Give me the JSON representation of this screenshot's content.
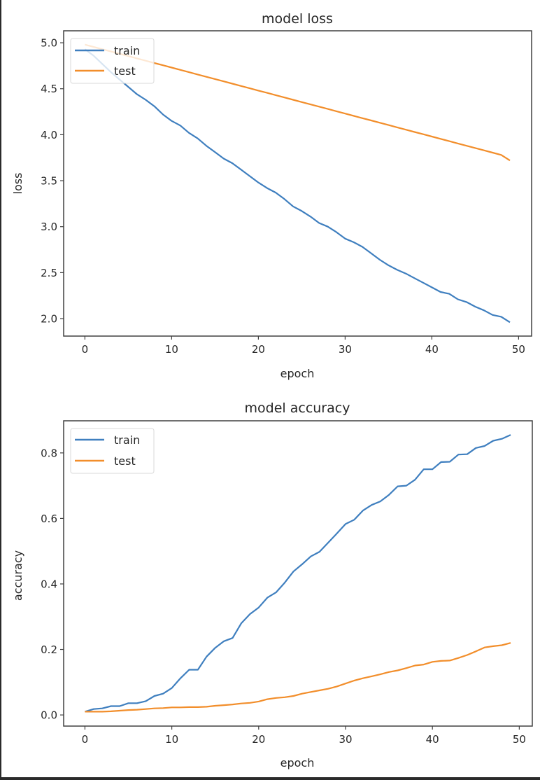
{
  "colors": {
    "train": "#3f7fbf",
    "test": "#f28e2b",
    "axis": "#404040",
    "legend_border": "#dddddd"
  },
  "chart_data": [
    {
      "type": "line",
      "title": "model loss",
      "xlabel": "epoch",
      "ylabel": "loss",
      "xlim": [
        -2.45,
        51.5
      ],
      "ylim": [
        1.81,
        5.13
      ],
      "xticks": [
        0,
        10,
        20,
        30,
        40,
        50
      ],
      "xtick_labels": [
        "0",
        "10",
        "20",
        "30",
        "40",
        "50"
      ],
      "yticks": [
        2.0,
        2.5,
        3.0,
        3.5,
        4.0,
        4.5,
        5.0
      ],
      "ytick_labels": [
        "2.0",
        "2.5",
        "3.0",
        "3.5",
        "4.0",
        "4.5",
        "5.0"
      ],
      "grid": false,
      "legend": {
        "placement": "upper left",
        "entries": [
          "train",
          "test"
        ]
      },
      "x": [
        0,
        1,
        2,
        3,
        4,
        5,
        6,
        7,
        8,
        9,
        10,
        11,
        12,
        13,
        14,
        15,
        16,
        17,
        18,
        19,
        20,
        21,
        22,
        23,
        24,
        25,
        26,
        27,
        28,
        29,
        30,
        31,
        32,
        33,
        34,
        35,
        36,
        37,
        38,
        39,
        40,
        41,
        42,
        43,
        44,
        45,
        46,
        47,
        48,
        49
      ],
      "series": [
        {
          "name": "train",
          "values": [
            4.93,
            4.86,
            4.77,
            4.68,
            4.6,
            4.52,
            4.44,
            4.38,
            4.31,
            4.22,
            4.15,
            4.1,
            4.02,
            3.96,
            3.88,
            3.81,
            3.74,
            3.69,
            3.62,
            3.55,
            3.48,
            3.42,
            3.37,
            3.3,
            3.22,
            3.17,
            3.11,
            3.04,
            3.0,
            2.94,
            2.87,
            2.83,
            2.78,
            2.71,
            2.64,
            2.58,
            2.53,
            2.49,
            2.44,
            2.39,
            2.34,
            2.29,
            2.27,
            2.21,
            2.18,
            2.13,
            2.09,
            2.04,
            2.02,
            1.96
          ]
        },
        {
          "name": "test",
          "values": [
            4.98,
            4.955,
            4.93,
            4.905,
            4.88,
            4.855,
            4.83,
            4.805,
            4.78,
            4.755,
            4.73,
            4.705,
            4.68,
            4.655,
            4.63,
            4.605,
            4.58,
            4.555,
            4.53,
            4.505,
            4.48,
            4.455,
            4.43,
            4.405,
            4.38,
            4.355,
            4.33,
            4.305,
            4.28,
            4.255,
            4.23,
            4.205,
            4.18,
            4.155,
            4.13,
            4.105,
            4.08,
            4.055,
            4.03,
            4.005,
            3.98,
            3.955,
            3.93,
            3.905,
            3.88,
            3.855,
            3.83,
            3.805,
            3.78,
            3.72
          ]
        }
      ]
    },
    {
      "type": "line",
      "title": "model accuracy",
      "xlabel": "epoch",
      "ylabel": "accuracy",
      "xlim": [
        -2.45,
        51.5
      ],
      "ylim": [
        -0.034,
        0.898
      ],
      "xticks": [
        0,
        10,
        20,
        30,
        40,
        50
      ],
      "xtick_labels": [
        "0",
        "10",
        "20",
        "30",
        "40",
        "50"
      ],
      "yticks": [
        0.0,
        0.2,
        0.4,
        0.6,
        0.8
      ],
      "ytick_labels": [
        "0.0",
        "0.2",
        "0.4",
        "0.6",
        "0.8"
      ],
      "grid": false,
      "legend": {
        "placement": "upper left",
        "entries": [
          "train",
          "test"
        ]
      },
      "x": [
        0,
        1,
        2,
        3,
        4,
        5,
        6,
        7,
        8,
        9,
        10,
        11,
        12,
        13,
        14,
        15,
        16,
        17,
        18,
        19,
        20,
        21,
        22,
        23,
        24,
        25,
        26,
        27,
        28,
        29,
        30,
        31,
        32,
        33,
        34,
        35,
        36,
        37,
        38,
        39,
        40,
        41,
        42,
        43,
        44,
        45,
        46,
        47,
        48,
        49
      ],
      "series": [
        {
          "name": "train",
          "values": [
            0.01,
            0.018,
            0.02,
            0.027,
            0.027,
            0.036,
            0.036,
            0.042,
            0.058,
            0.065,
            0.082,
            0.112,
            0.138,
            0.138,
            0.178,
            0.205,
            0.225,
            0.235,
            0.28,
            0.308,
            0.328,
            0.358,
            0.374,
            0.404,
            0.438,
            0.46,
            0.484,
            0.498,
            0.526,
            0.554,
            0.583,
            0.596,
            0.624,
            0.641,
            0.652,
            0.672,
            0.698,
            0.7,
            0.718,
            0.75,
            0.75,
            0.772,
            0.773,
            0.795,
            0.796,
            0.815,
            0.821,
            0.837,
            0.843,
            0.855
          ]
        },
        {
          "name": "test",
          "values": [
            0.01,
            0.01,
            0.01,
            0.011,
            0.013,
            0.015,
            0.016,
            0.018,
            0.02,
            0.021,
            0.023,
            0.023,
            0.024,
            0.024,
            0.025,
            0.028,
            0.03,
            0.032,
            0.035,
            0.037,
            0.041,
            0.048,
            0.052,
            0.054,
            0.058,
            0.065,
            0.07,
            0.075,
            0.08,
            0.087,
            0.096,
            0.105,
            0.112,
            0.118,
            0.124,
            0.131,
            0.136,
            0.143,
            0.151,
            0.154,
            0.162,
            0.165,
            0.166,
            0.174,
            0.183,
            0.194,
            0.206,
            0.21,
            0.213,
            0.22
          ]
        }
      ]
    }
  ]
}
